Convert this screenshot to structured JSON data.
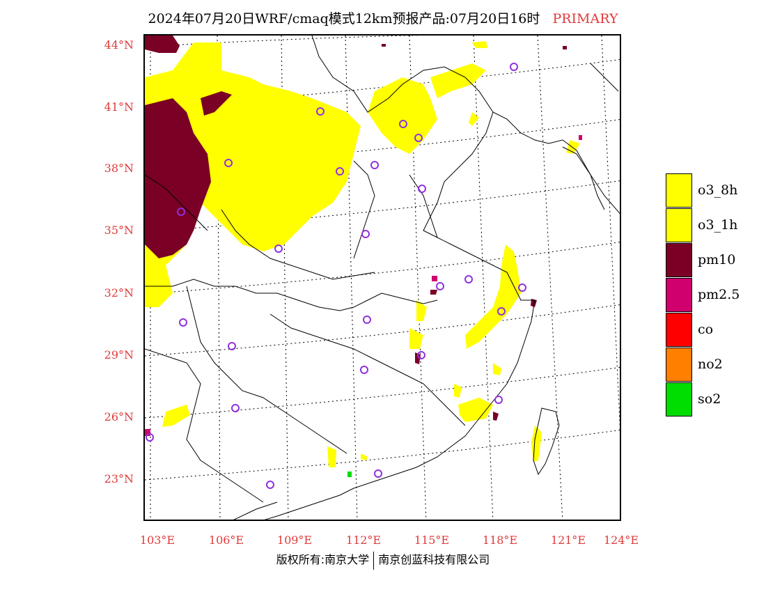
{
  "header": {
    "title": "2024年07月20日WRF/cmaq模式12km预报产品:07月20日16时",
    "tag": "PRIMARY"
  },
  "axes": {
    "lat_labels": [
      "44°N",
      "41°N",
      "38°N",
      "35°N",
      "32°N",
      "29°N",
      "26°N",
      "23°N"
    ],
    "lon_labels": [
      "103°E",
      "106°E",
      "109°E",
      "112°E",
      "115°E",
      "118°E",
      "121°E",
      "124°E"
    ]
  },
  "legend": {
    "items": [
      {
        "label": "o3_8h",
        "color": "#ffff00"
      },
      {
        "label": "o3_1h",
        "color": "#ffff00"
      },
      {
        "label": "pm10",
        "color": "#7a0025"
      },
      {
        "label": "pm2.5",
        "color": "#d0006f"
      },
      {
        "label": "co",
        "color": "#ff0000"
      },
      {
        "label": "no2",
        "color": "#ff7f00"
      },
      {
        "label": "so2",
        "color": "#00dd00"
      }
    ]
  },
  "footer": {
    "left": "版权所有:南京大学",
    "right": "南京创蓝科技有限公司"
  }
}
